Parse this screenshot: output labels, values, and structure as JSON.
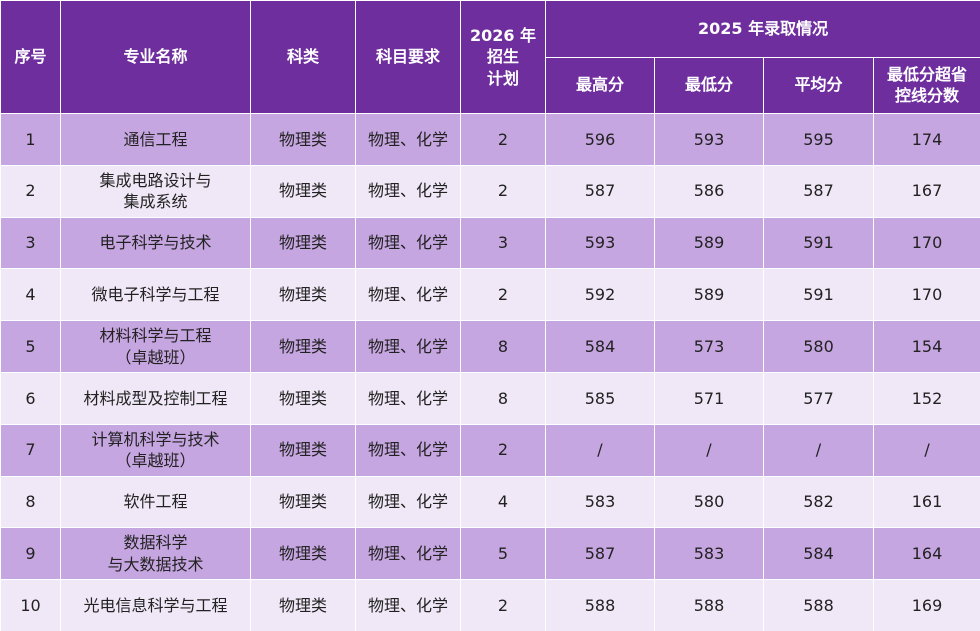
{
  "header": {
    "index": "序号",
    "major": "专业名称",
    "category": "科类",
    "subjects": "科目要求",
    "plan": "2026 年\n招生\n计划",
    "group": "2025 年录取情况",
    "max": "最高分",
    "min": "最低分",
    "avg": "平均分",
    "over": "最低分超省\n控线分数"
  },
  "table": {
    "rows": [
      [
        1,
        "通信工程",
        "物理类",
        "物理、化学",
        2,
        596,
        593,
        595,
        174
      ],
      [
        2,
        "集成电路设计与\n集成系统",
        "物理类",
        "物理、化学",
        2,
        587,
        586,
        587,
        167
      ],
      [
        3,
        "电子科学与技术",
        "物理类",
        "物理、化学",
        3,
        593,
        589,
        591,
        170
      ],
      [
        4,
        "微电子科学与工程",
        "物理类",
        "物理、化学",
        2,
        592,
        589,
        591,
        170
      ],
      [
        5,
        "材料科学与工程\n（卓越班）",
        "物理类",
        "物理、化学",
        8,
        584,
        573,
        580,
        154
      ],
      [
        6,
        "材料成型及控制工程",
        "物理类",
        "物理、化学",
        8,
        585,
        571,
        577,
        152
      ],
      [
        7,
        "计算机科学与技术\n（卓越班）",
        "物理类",
        "物理、化学",
        2,
        "/",
        "/",
        "/",
        "/"
      ],
      [
        8,
        "软件工程",
        "物理类",
        "物理、化学",
        4,
        583,
        580,
        582,
        161
      ],
      [
        9,
        "数据科学\n与大数据技术",
        "物理类",
        "物理、化学",
        5,
        587,
        583,
        584,
        164
      ],
      [
        10,
        "光电信息科学与工程",
        "物理类",
        "物理、化学",
        2,
        588,
        588,
        588,
        169
      ]
    ]
  }
}
